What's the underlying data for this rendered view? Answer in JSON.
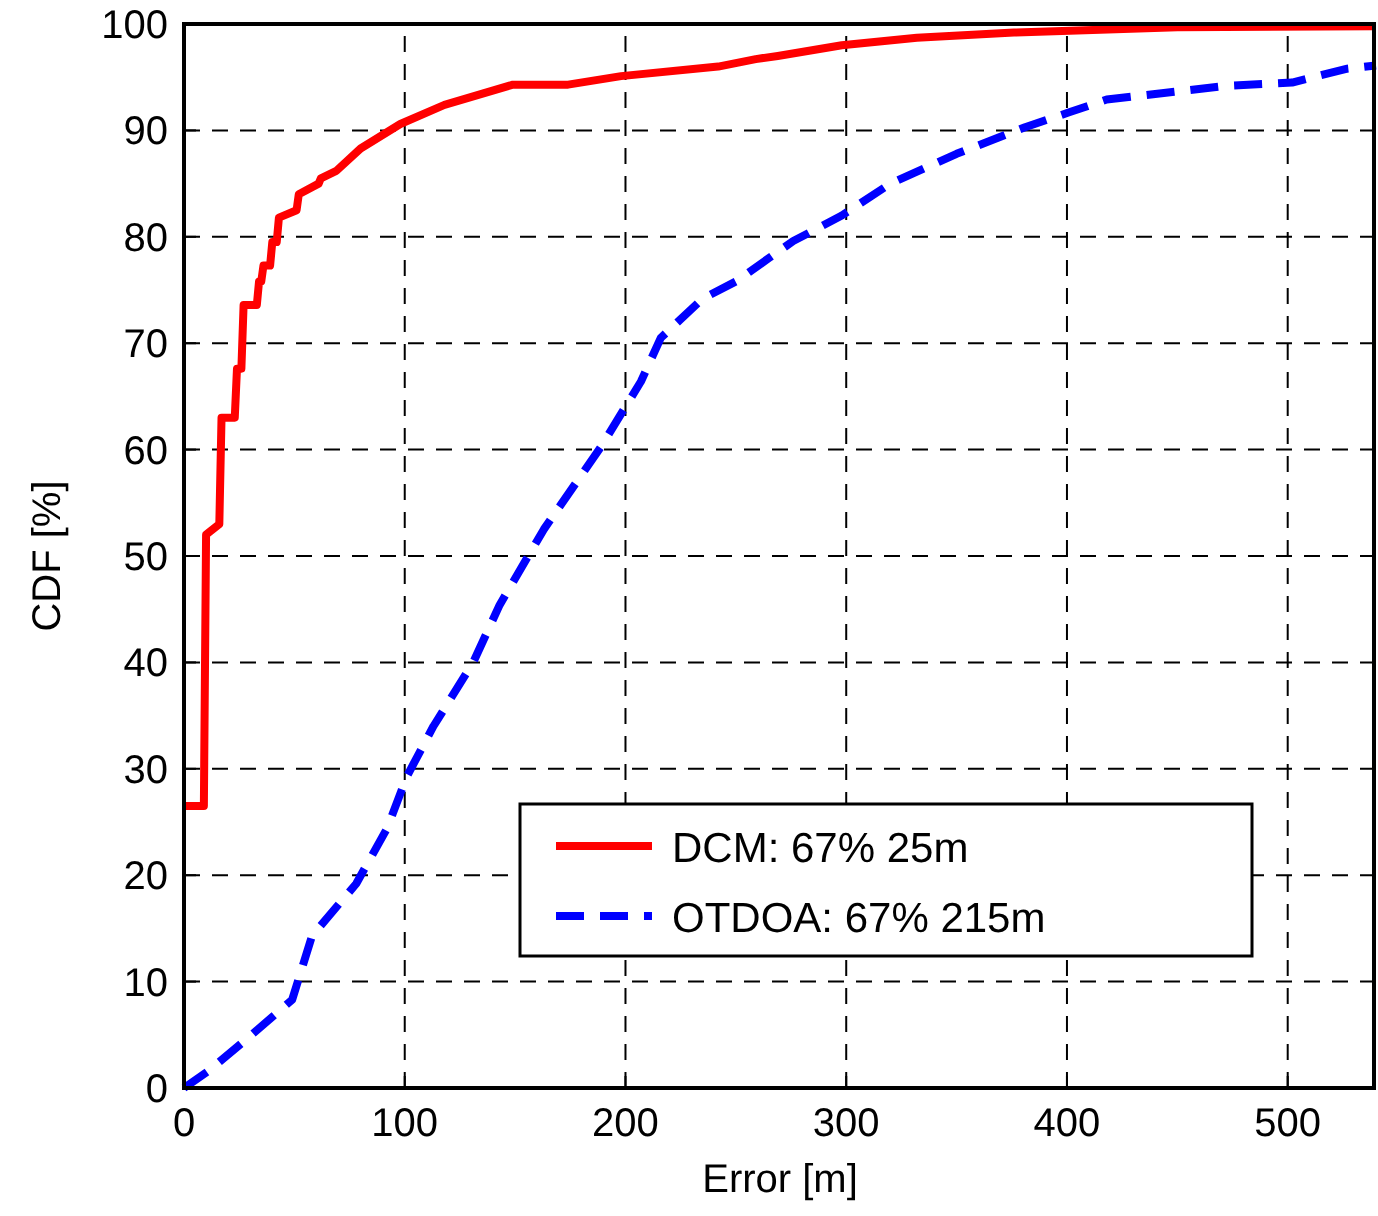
{
  "chart_data": {
    "type": "line",
    "xlabel": "Error [m]",
    "ylabel": "CDF [%]",
    "xlim": [
      0,
      540
    ],
    "ylim": [
      0,
      100
    ],
    "xticks": [
      0,
      100,
      200,
      300,
      400,
      500
    ],
    "yticks": [
      0,
      10,
      20,
      30,
      40,
      50,
      60,
      70,
      80,
      90,
      100
    ],
    "grid": true,
    "legend": "bottom right",
    "series": [
      {
        "name": "DCM: 67% 25m",
        "color": "#ff0000",
        "line_style": "solid",
        "x": [
          0,
          9,
          10,
          16,
          17,
          23,
          24,
          26,
          27,
          33,
          34,
          35,
          36,
          39,
          40,
          42,
          43,
          51,
          52,
          61,
          62,
          69,
          80,
          98,
          118,
          149,
          174,
          198,
          242,
          259,
          269,
          298,
          332,
          376,
          450,
          540
        ],
        "values": [
          26.5,
          26.5,
          52,
          53,
          63,
          63,
          67.6,
          67.6,
          73.6,
          73.6,
          75.8,
          75.8,
          77.3,
          77.3,
          79.5,
          79.5,
          81.8,
          82.5,
          84,
          85,
          85.5,
          86.2,
          88.3,
          90.6,
          92.4,
          94.3,
          94.3,
          95.1,
          96,
          96.7,
          97,
          98,
          98.7,
          99.2,
          99.7,
          99.8
        ]
      },
      {
        "name": "OTDOA: 67% 215m",
        "color": "#0000ff",
        "line_style": "dashed",
        "x": [
          0,
          11,
          29,
          49,
          58,
          78,
          92,
          101,
          113,
          131,
          143,
          163,
          189,
          207,
          216,
          235,
          250,
          265,
          276,
          298,
          320,
          350,
          381,
          401,
          418,
          473,
          502,
          527,
          540
        ],
        "values": [
          0,
          1.6,
          4.7,
          8.3,
          14.3,
          19.2,
          24.4,
          29.3,
          34,
          40,
          45.4,
          52.5,
          60.3,
          66.4,
          70.5,
          74.2,
          75.8,
          78,
          79.6,
          82,
          85,
          87.8,
          90.3,
          91.7,
          92.9,
          94.2,
          94.5,
          95.8,
          96.1
        ]
      }
    ]
  }
}
